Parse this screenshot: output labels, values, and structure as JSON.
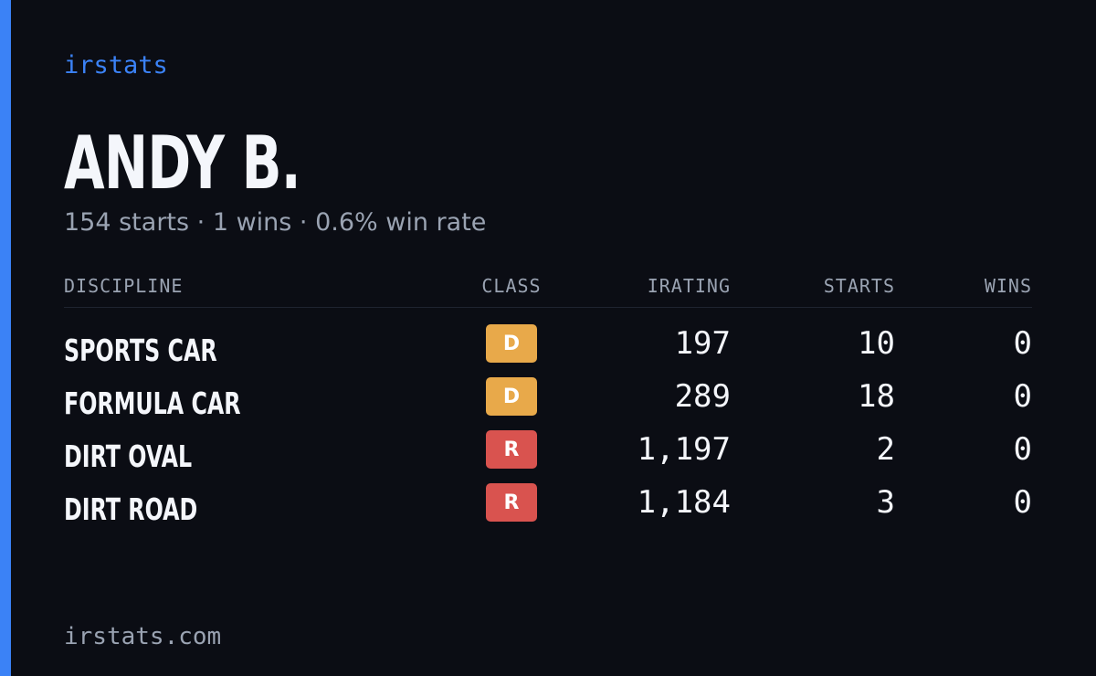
{
  "brand": "irstats",
  "profile": {
    "name": "ANDY B.",
    "summary": "154 starts · 1 wins · 0.6% win rate"
  },
  "table": {
    "headers": [
      "DISCIPLINE",
      "CLASS",
      "IRATING",
      "STARTS",
      "WINS"
    ],
    "class_colors": {
      "D": "#e8a94a",
      "R": "#d9534f"
    },
    "rows": [
      [
        "SPORTS CAR",
        "D",
        "197",
        "10",
        "0"
      ],
      [
        "FORMULA CAR",
        "D",
        "289",
        "18",
        "0"
      ],
      [
        "DIRT OVAL",
        "R",
        "1,197",
        "2",
        "0"
      ],
      [
        "DIRT ROAD",
        "R",
        "1,184",
        "3",
        "0"
      ]
    ]
  },
  "footer": "irstats.com"
}
